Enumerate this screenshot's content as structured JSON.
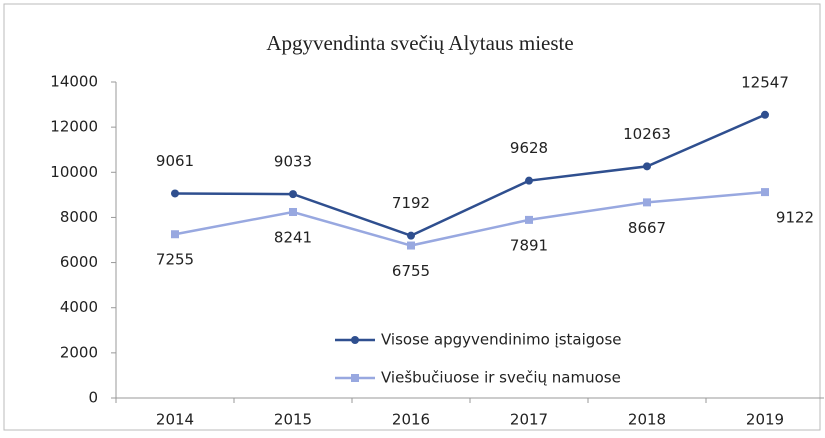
{
  "chart_data": {
    "type": "line",
    "title": "Apgyvendinta svečių Alytaus mieste",
    "categories": [
      "2014",
      "2015",
      "2016",
      "2017",
      "2018",
      "2019"
    ],
    "series": [
      {
        "name": "Visose apgyvendinimo įstaigose",
        "color": "#2f4f8f",
        "values": [
          9061,
          9033,
          7192,
          9628,
          10263,
          12547
        ]
      },
      {
        "name": "Viešbučiuose ir svečių namuose",
        "color": "#98a8e0",
        "values": [
          7255,
          8241,
          6755,
          7891,
          8667,
          9122
        ]
      }
    ],
    "ylim": [
      0,
      14000
    ],
    "yticks": [
      0,
      2000,
      4000,
      6000,
      8000,
      10000,
      12000,
      14000
    ],
    "grid": false,
    "legend": "inside-bottom"
  }
}
